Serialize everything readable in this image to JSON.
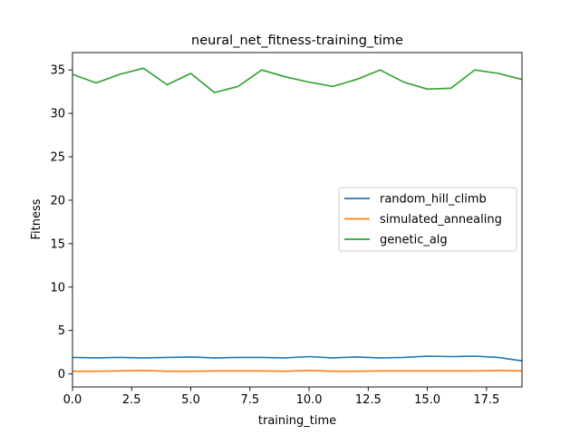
{
  "chart_data": {
    "type": "line",
    "title": "neural_net_fitness-training_time",
    "xlabel": "training_time",
    "ylabel": "Fitness",
    "xlim": [
      0,
      19
    ],
    "ylim": [
      -1.5,
      37
    ],
    "x_ticks": [
      0,
      2.5,
      5,
      7.5,
      10,
      12.5,
      15,
      17.5
    ],
    "x_tick_labels": [
      "0.0",
      "2.5",
      "5.0",
      "7.5",
      "10.0",
      "12.5",
      "15.0",
      "17.5"
    ],
    "y_ticks": [
      0,
      5,
      10,
      15,
      20,
      25,
      30,
      35
    ],
    "y_tick_labels": [
      "0",
      "5",
      "10",
      "15",
      "20",
      "25",
      "30",
      "35"
    ],
    "grid": false,
    "legend_position": "center-right",
    "x": [
      0,
      1,
      2,
      3,
      4,
      5,
      6,
      7,
      8,
      9,
      10,
      11,
      12,
      13,
      14,
      15,
      16,
      17,
      18,
      19
    ],
    "series": [
      {
        "name": "random_hill_climb",
        "color": "#1f77b4",
        "values": [
          1.9,
          1.85,
          1.9,
          1.85,
          1.9,
          1.95,
          1.85,
          1.9,
          1.9,
          1.85,
          2.0,
          1.85,
          1.95,
          1.85,
          1.9,
          2.05,
          2.0,
          2.05,
          1.9,
          1.5
        ]
      },
      {
        "name": "simulated_annealing",
        "color": "#ff7f0e",
        "values": [
          0.3,
          0.3,
          0.35,
          0.4,
          0.3,
          0.3,
          0.35,
          0.35,
          0.35,
          0.3,
          0.4,
          0.3,
          0.3,
          0.35,
          0.35,
          0.35,
          0.35,
          0.35,
          0.4,
          0.35
        ]
      },
      {
        "name": "genetic_alg",
        "color": "#2ca02c",
        "values": [
          34.5,
          33.5,
          34.5,
          35.2,
          33.3,
          34.6,
          32.4,
          33.1,
          35.0,
          34.2,
          33.6,
          33.1,
          33.9,
          35.0,
          33.6,
          32.8,
          32.9,
          35.0,
          34.6,
          33.9
        ]
      }
    ]
  }
}
